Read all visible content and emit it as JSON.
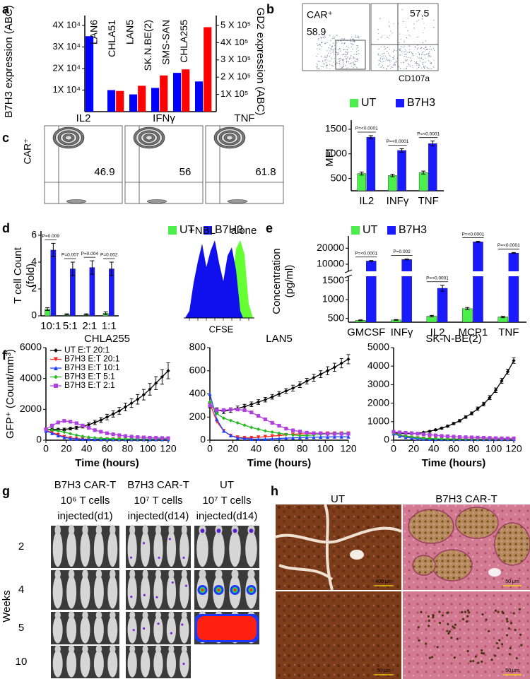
{
  "panel_labels": [
    "a",
    "b",
    "c",
    "d",
    "e",
    "f",
    "g",
    "h"
  ],
  "chart_data": [
    {
      "type": "bar",
      "categories": [
        "LAN6",
        "CHLA51",
        "LAN5",
        "SK.N.BE(2)",
        "SMS-SAN",
        "CHLA255"
      ],
      "series": [
        {
          "color": "#0000ff",
          "values": [
            35000,
            10000,
            8000,
            11000,
            18000,
            14000
          ]
        },
        {
          "color": "#ff0000",
          "axis": "y2",
          "values": [
            null,
            120000,
            150000,
            210000,
            245000,
            490000
          ]
        }
      ],
      "ylabel": "B7H3 expression (ABC)",
      "y2label": "GD2 expression (ABC)",
      "ylim": [
        0,
        40000
      ],
      "yticks": [
        {
          "value": 10000,
          "label": "1X 10⁴"
        },
        {
          "value": 20000,
          "label": "2X 10⁴"
        },
        {
          "value": 30000,
          "label": "3X 10⁴"
        },
        {
          "value": 40000,
          "label": "4X 10⁴"
        }
      ],
      "y2lim": [
        0,
        500000
      ],
      "y2ticks": [
        {
          "value": 100000,
          "label": "1X 10⁵"
        },
        {
          "value": 200000,
          "label": "2 X 10⁵"
        },
        {
          "value": 300000,
          "label": "3 X 10⁵"
        },
        {
          "value": 400000,
          "label": "4X 10⁵"
        },
        {
          "value": 500000,
          "label": "5 X 10⁵"
        }
      ]
    },
    {
      "type": "bar",
      "ylabel": [
        "MFI"
      ],
      "categories": [
        "IL2",
        "INFγ",
        "TNF"
      ],
      "series": [
        {
          "name": "UT",
          "color": "#4cee4c",
          "values": [
            600,
            560,
            620
          ],
          "errors": [
            30,
            25,
            30
          ]
        },
        {
          "name": "B7H3",
          "color": "#1a1aff",
          "values": [
            1340,
            1070,
            1210
          ],
          "errors": [
            30,
            35,
            50
          ]
        }
      ],
      "ylim": [
        250,
        1600
      ],
      "yticks": [
        500,
        1000,
        1500
      ],
      "annotations": [
        "P=<0.0001",
        "P=<0.0001",
        "P=<0.0001"
      ]
    },
    {
      "type": "bar",
      "ylabel": [
        "T cell Count",
        "(fold)"
      ],
      "categories": [
        "10:1",
        "5:1",
        "2:1",
        "1:1"
      ],
      "series": [
        {
          "name": "UT",
          "color": "#4cee4c",
          "values": [
            0.5,
            0.1,
            0.1,
            0.2
          ],
          "errors": [
            0.1,
            0.05,
            0.05,
            0.1
          ]
        },
        {
          "name": "B7H3",
          "color": "#1a1aff",
          "values": [
            4.9,
            3.5,
            3.6,
            3.5
          ],
          "errors": [
            0.5,
            0.5,
            0.5,
            0.5
          ]
        }
      ],
      "ylim": [
        0,
        6
      ],
      "yticks": [
        0,
        2,
        4,
        6
      ],
      "annotations": [
        "P=0.009",
        "P=0.007",
        "P=0.004",
        "P=0.002"
      ]
    },
    {
      "type": "bar",
      "ylabel": [
        "Concentration",
        "(pg/ml)"
      ],
      "categories": [
        "GMCSF",
        "INFγ",
        "IL2",
        "MCP1",
        "TNF"
      ],
      "series": [
        {
          "name": "UT",
          "color": "#4cee4c",
          "values": [
            450,
            460,
            560,
            760,
            540
          ],
          "errors": [
            10,
            10,
            20,
            30,
            20
          ]
        },
        {
          "name": "B7H3",
          "color": "#1a1aff",
          "values": [
            12000,
            13000,
            1300,
            24000,
            17000
          ],
          "errors": [
            300,
            300,
            80,
            300,
            300
          ]
        }
      ],
      "ylim": [
        400,
        25000
      ],
      "ybreak": [
        1600,
        6000
      ],
      "yticks": [
        500,
        1000,
        1500,
        10000,
        20000
      ],
      "annotations": [
        "P=<0.0001",
        "P=0.002",
        "P=<0.0001",
        "P=<0.0001",
        "P=<0.0001"
      ]
    },
    {
      "type": "line",
      "title": "CHLA255",
      "xlabel": "Time (hours)",
      "ylabel": "GFP⁺ (Count/mm³)",
      "legend": "upper left",
      "x": [
        0,
        6,
        12,
        18,
        24,
        30,
        36,
        42,
        48,
        54,
        60,
        66,
        72,
        78,
        84,
        90,
        96,
        102,
        108,
        114,
        120
      ],
      "xlim": [
        0,
        120
      ],
      "xticks": [
        0,
        20,
        40,
        60,
        80,
        100,
        120
      ],
      "ylim": [
        0,
        6000
      ],
      "yticks": [
        0,
        2000,
        4000,
        6000
      ],
      "series": [
        {
          "name": "UT E:T 20:1",
          "color": "#000000",
          "marker": "diamond",
          "values": [
            700,
            700,
            690,
            700,
            750,
            800,
            900,
            1000,
            1150,
            1300,
            1500,
            1700,
            1900,
            2150,
            2400,
            2650,
            2950,
            3300,
            3700,
            4100,
            4500
          ],
          "errors": [
            80,
            80,
            80,
            80,
            90,
            100,
            110,
            120,
            140,
            160,
            180,
            200,
            220,
            250,
            280,
            310,
            340,
            380,
            420,
            470,
            520
          ]
        },
        {
          "name": "B7H3 E:T 20:1",
          "color": "#ff2020",
          "marker": "tri-down",
          "values": [
            650,
            500,
            350,
            220,
            140,
            100,
            80,
            70,
            60,
            60,
            60,
            60,
            60,
            60,
            60,
            60,
            60,
            60,
            60,
            60,
            60
          ]
        },
        {
          "name": "B7H3 E:T 10:1",
          "color": "#2040ff",
          "marker": "tri-up",
          "values": [
            600,
            450,
            300,
            180,
            110,
            80,
            70,
            60,
            55,
            50,
            50,
            50,
            50,
            50,
            50,
            50,
            50,
            50,
            50,
            50,
            50
          ]
        },
        {
          "name": "B7H3 E:T 5:1",
          "color": "#22bb22",
          "marker": "diamond",
          "values": [
            700,
            650,
            600,
            520,
            420,
            320,
            250,
            190,
            150,
            120,
            100,
            90,
            80,
            80,
            80,
            80,
            80,
            80,
            80,
            80,
            80
          ]
        },
        {
          "name": "B7H3 E:T 2:1",
          "color": "#b040e0",
          "marker": "square",
          "values": [
            700,
            950,
            1150,
            1250,
            1200,
            1100,
            950,
            800,
            650,
            550,
            450,
            380,
            320,
            270,
            230,
            200,
            180,
            160,
            150,
            140,
            130
          ]
        }
      ]
    },
    {
      "type": "line",
      "title": "LAN5",
      "xlabel": "Time (hours)",
      "x": [
        0,
        6,
        12,
        18,
        24,
        30,
        36,
        42,
        48,
        54,
        60,
        66,
        72,
        78,
        84,
        90,
        96,
        102,
        108,
        114,
        120
      ],
      "xlim": [
        0,
        120
      ],
      "xticks": [
        0,
        20,
        40,
        60,
        80,
        100,
        120
      ],
      "ylim": [
        0,
        800
      ],
      "yticks": [
        0,
        200,
        400,
        600,
        800
      ],
      "series": [
        {
          "color": "#000000",
          "marker": "diamond",
          "values": [
            300,
            260,
            250,
            260,
            275,
            290,
            310,
            330,
            350,
            375,
            400,
            425,
            450,
            480,
            510,
            540,
            570,
            600,
            630,
            665,
            700
          ],
          "errors": [
            20,
            20,
            20,
            20,
            20,
            20,
            20,
            20,
            20,
            20,
            20,
            20,
            25,
            25,
            25,
            30,
            30,
            35,
            35,
            40,
            40
          ]
        },
        {
          "color": "#ff2020",
          "marker": "tri-down",
          "values": [
            320,
            160,
            80,
            40,
            25,
            20,
            20,
            25,
            30,
            35,
            40,
            45,
            50,
            55,
            55,
            60,
            60,
            60,
            60,
            60,
            60
          ]
        },
        {
          "color": "#2040ff",
          "marker": "tri-up",
          "values": [
            400,
            180,
            80,
            40,
            20,
            15,
            10,
            10,
            10,
            12,
            15,
            18,
            20,
            22,
            25,
            25,
            28,
            28,
            30,
            30,
            30
          ]
        },
        {
          "color": "#22bb22",
          "marker": "diamond",
          "values": [
            330,
            230,
            190,
            170,
            150,
            130,
            110,
            95,
            80,
            70,
            60,
            50,
            45,
            40,
            40,
            45,
            50,
            55,
            60,
            60,
            60
          ]
        },
        {
          "color": "#b040e0",
          "marker": "square",
          "values": [
            300,
            260,
            260,
            265,
            265,
            260,
            240,
            210,
            180,
            150,
            125,
            100,
            85,
            75,
            65,
            60,
            60,
            55,
            55,
            55,
            55
          ]
        }
      ]
    },
    {
      "type": "line",
      "title": "SK-N-BE(2)",
      "xlabel": "Time (hours)",
      "x": [
        0,
        6,
        12,
        18,
        24,
        30,
        36,
        42,
        48,
        54,
        60,
        66,
        72,
        78,
        84,
        90,
        96,
        102,
        108,
        114,
        120
      ],
      "xlim": [
        0,
        120
      ],
      "xticks": [
        0,
        20,
        40,
        60,
        80,
        100,
        120
      ],
      "ylim": [
        0,
        5000
      ],
      "yticks": [
        0,
        1000,
        2000,
        3000,
        4000,
        5000
      ],
      "series": [
        {
          "color": "#000000",
          "marker": "diamond",
          "values": [
            400,
            380,
            360,
            350,
            370,
            420,
            480,
            560,
            650,
            760,
            900,
            1050,
            1250,
            1450,
            1700,
            1950,
            2300,
            2700,
            3200,
            3700,
            4300
          ],
          "errors": [
            30,
            30,
            30,
            30,
            30,
            35,
            40,
            45,
            50,
            55,
            60,
            65,
            70,
            80,
            90,
            100,
            110,
            120,
            130,
            140,
            150
          ]
        },
        {
          "color": "#ff2020",
          "marker": "tri-down",
          "values": [
            350,
            250,
            180,
            140,
            110,
            90,
            80,
            70,
            60,
            60,
            60,
            60,
            60,
            60,
            60,
            60,
            60,
            60,
            60,
            60,
            60
          ]
        },
        {
          "color": "#2040ff",
          "marker": "tri-up",
          "values": [
            350,
            230,
            160,
            120,
            90,
            70,
            60,
            50,
            50,
            50,
            50,
            50,
            50,
            50,
            50,
            50,
            50,
            50,
            50,
            50,
            50
          ]
        },
        {
          "color": "#22bb22",
          "marker": "diamond",
          "values": [
            380,
            300,
            230,
            180,
            140,
            110,
            90,
            80,
            70,
            60,
            60,
            60,
            60,
            60,
            60,
            60,
            60,
            60,
            60,
            60,
            60
          ]
        },
        {
          "color": "#b040e0",
          "marker": "square",
          "values": [
            450,
            420,
            400,
            380,
            350,
            320,
            290,
            260,
            230,
            210,
            190,
            170,
            160,
            150,
            140,
            130,
            120,
            110,
            100,
            100,
            100
          ]
        }
      ]
    }
  ],
  "flow_b": {
    "gate_label": "CAR⁺",
    "gate_left": "58.9",
    "gate_right": "57.5",
    "x_label": "CD107a"
  },
  "flow_c": {
    "y_label": "CAR⁺",
    "panels": [
      {
        "title": "IL2",
        "value": "46.9"
      },
      {
        "title": "IFNγ",
        "value": "56"
      },
      {
        "title": "TNF",
        "value": "61.8"
      }
    ]
  },
  "cfse": {
    "label_nbl": "+NBL",
    "label_alone": "alone",
    "x_label": "CFSE"
  },
  "mice": {
    "columns": [
      {
        "lines": [
          "B7H3 CAR-T",
          "10⁶ T cells",
          "injected(d1)"
        ]
      },
      {
        "lines": [
          "B7H3 CAR-T",
          "10⁷ T cells",
          "injected(d14)"
        ]
      },
      {
        "lines": [
          "UT",
          "10⁷ T cells",
          "injected(d14)"
        ]
      }
    ],
    "rows": [
      "2",
      "4",
      "5",
      "10"
    ],
    "row_axis": "Weeks"
  },
  "histology": {
    "columns": [
      "UT",
      "B7H3 CAR-T"
    ],
    "scale_bars": [
      "400 µm",
      "50 µm",
      "50 µm",
      "50 µm"
    ]
  }
}
